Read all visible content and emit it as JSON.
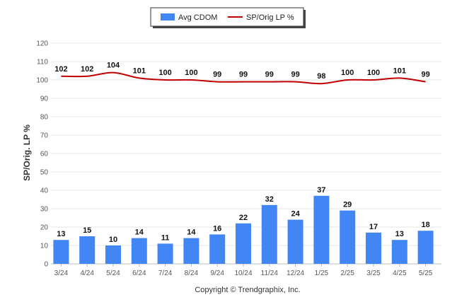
{
  "chart_data": {
    "type": "bar",
    "categories": [
      "3/24",
      "4/24",
      "5/24",
      "6/24",
      "7/24",
      "8/24",
      "9/24",
      "10/24",
      "11/24",
      "12/24",
      "1/25",
      "2/25",
      "3/25",
      "4/25",
      "5/25"
    ],
    "series": [
      {
        "name": "Avg CDOM",
        "type": "bar",
        "color": "#4285F4",
        "values": [
          13,
          15,
          10,
          14,
          11,
          14,
          16,
          22,
          32,
          24,
          37,
          29,
          17,
          13,
          18
        ]
      },
      {
        "name": "SP/Orig LP %",
        "type": "line",
        "color": "#C00000",
        "values": [
          102,
          102,
          104,
          101,
          100,
          100,
          99,
          99,
          99,
          99,
          98,
          100,
          100,
          101,
          99
        ]
      }
    ],
    "ylabel": "SP/Orig. LP %",
    "ylim": [
      0,
      120
    ],
    "yticks": [
      0,
      10,
      20,
      30,
      40,
      50,
      60,
      70,
      80,
      90,
      100,
      110,
      120
    ],
    "grid": true,
    "legend": "top-center"
  },
  "footer": {
    "copyright": "Copyright © Trendgraphix, Inc."
  }
}
